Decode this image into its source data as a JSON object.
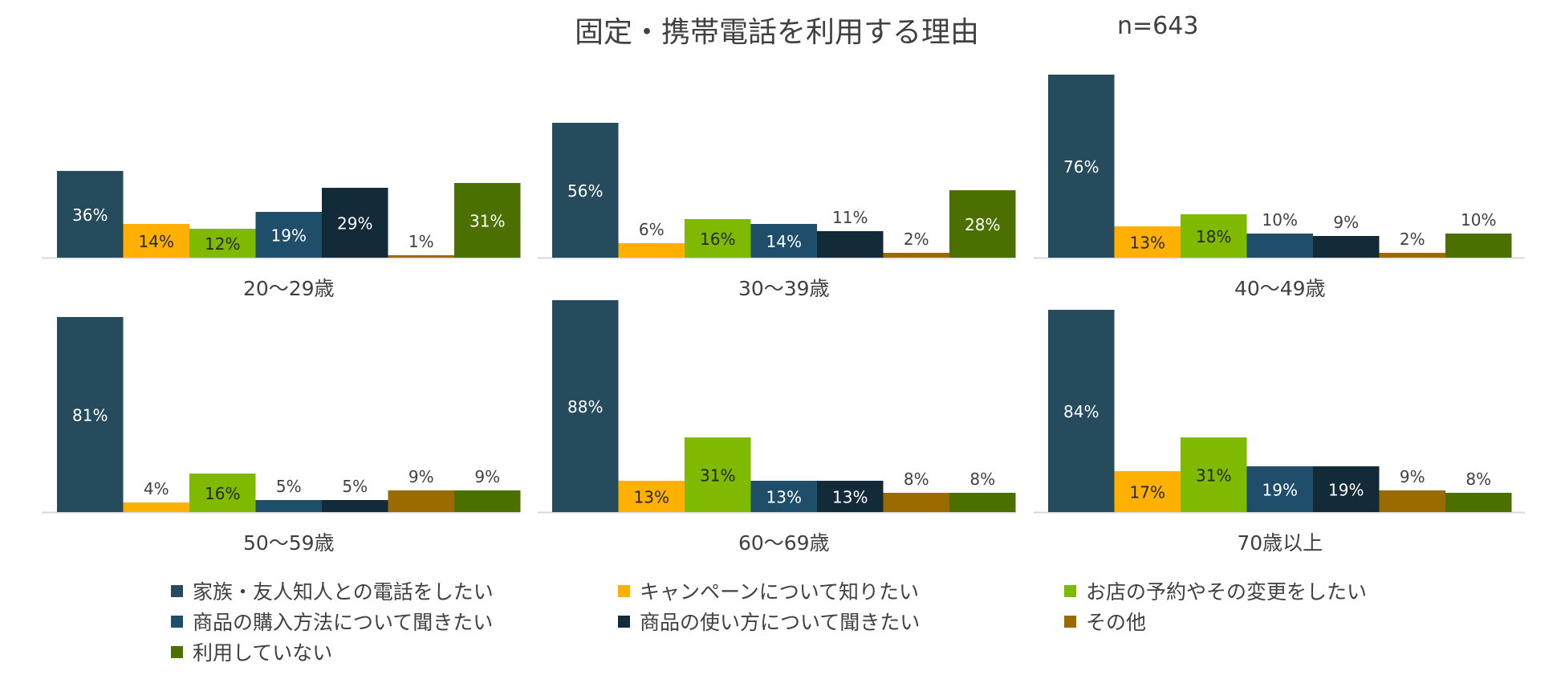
{
  "chart_data": {
    "type": "bar",
    "title": "固定・携帯電話を利用する理由",
    "sample_size": "n=643",
    "series": [
      {
        "name": "家族・友人知人との電話をしたい",
        "color": "#254b5c",
        "label_color": "#ffffff"
      },
      {
        "name": "キャンペーンについて知りたい",
        "color": "#ffb000",
        "label_color": "#262626"
      },
      {
        "name": "お店の予約やその変更をしたい",
        "color": "#7fba00",
        "label_color": "#262626"
      },
      {
        "name": "商品の購入方法について聞きたい",
        "color": "#1f4e6a",
        "label_color": "#ffffff"
      },
      {
        "name": "商品の使い方について聞きたい",
        "color": "#132a38",
        "label_color": "#ffffff"
      },
      {
        "name": "その他",
        "color": "#9c6b00",
        "label_color": "#262626"
      },
      {
        "name": "利用していない",
        "color": "#4c7000",
        "label_color": "#ffffff"
      }
    ],
    "panels": [
      {
        "category": "20〜29歳",
        "values": [
          36,
          14,
          12,
          19,
          29,
          1,
          31
        ],
        "labels": [
          "36%",
          "14%",
          "12%",
          "19%",
          "29%",
          "1%",
          "31%"
        ]
      },
      {
        "category": "30〜39歳",
        "values": [
          56,
          6,
          16,
          14,
          11,
          2,
          28
        ],
        "labels": [
          "56%",
          "6%",
          "16%",
          "14%",
          "11%",
          "2%",
          "28%"
        ]
      },
      {
        "category": "40〜49歳",
        "values": [
          76,
          13,
          18,
          10,
          9,
          2,
          10
        ],
        "labels": [
          "76%",
          "13%",
          "18%",
          "10%",
          "9%",
          "2%",
          "10%"
        ]
      },
      {
        "category": "50〜59歳",
        "values": [
          81,
          4,
          16,
          5,
          5,
          9,
          9
        ],
        "labels": [
          "81%",
          "4%",
          "16%",
          "5%",
          "5%",
          "9%",
          "9%"
        ]
      },
      {
        "category": "60〜69歳",
        "values": [
          88,
          13,
          31,
          13,
          13,
          8,
          8
        ],
        "labels": [
          "88%",
          "13%",
          "31%",
          "13%",
          "13%",
          "8%",
          "8%"
        ]
      },
      {
        "category": "70歳以上",
        "values": [
          84,
          17,
          31,
          19,
          19,
          9,
          8
        ],
        "labels": [
          "84%",
          "17%",
          "31%",
          "19%",
          "19%",
          "9%",
          "8%"
        ]
      }
    ],
    "ylim": [
      0,
      100
    ],
    "xlabel": "",
    "ylabel": "",
    "grid": false,
    "legend_position": "bottom"
  }
}
